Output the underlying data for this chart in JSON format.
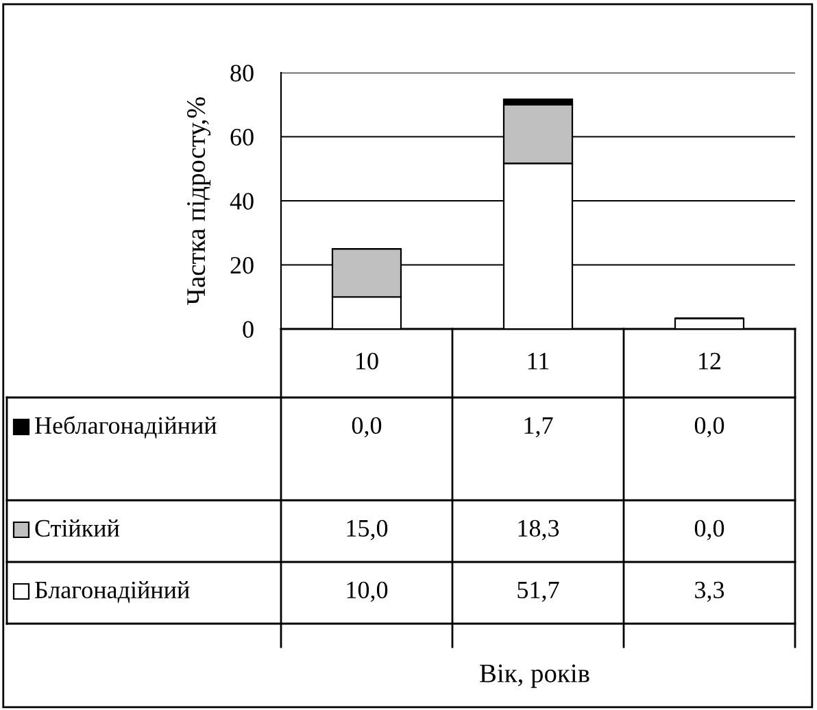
{
  "chart_data": {
    "type": "bar",
    "stacked": true,
    "ylabel": "Частка підросту,%",
    "annotations": [
      "Вік, років"
    ],
    "categories": [
      "10",
      "11",
      "12"
    ],
    "ylim": [
      0,
      80
    ],
    "yticks": [
      0,
      20,
      40,
      60,
      80
    ],
    "grid": "y",
    "legend": "left",
    "series": [
      {
        "name": "Благонадійний",
        "color": "#ffffff",
        "values": [
          10.0,
          51.7,
          3.3
        ],
        "value_labels": [
          "10,0",
          "51,7",
          "3,3"
        ]
      },
      {
        "name": "Стійкий",
        "color": "#c0c0c0",
        "values": [
          15.0,
          18.3,
          0.0
        ],
        "value_labels": [
          "15,0",
          "18,3",
          "0,0"
        ]
      },
      {
        "name": "Неблагонадійний",
        "color": "#000000",
        "values": [
          0.0,
          1.7,
          0.0
        ],
        "value_labels": [
          "0,0",
          "1,7",
          "0,0"
        ]
      }
    ]
  }
}
